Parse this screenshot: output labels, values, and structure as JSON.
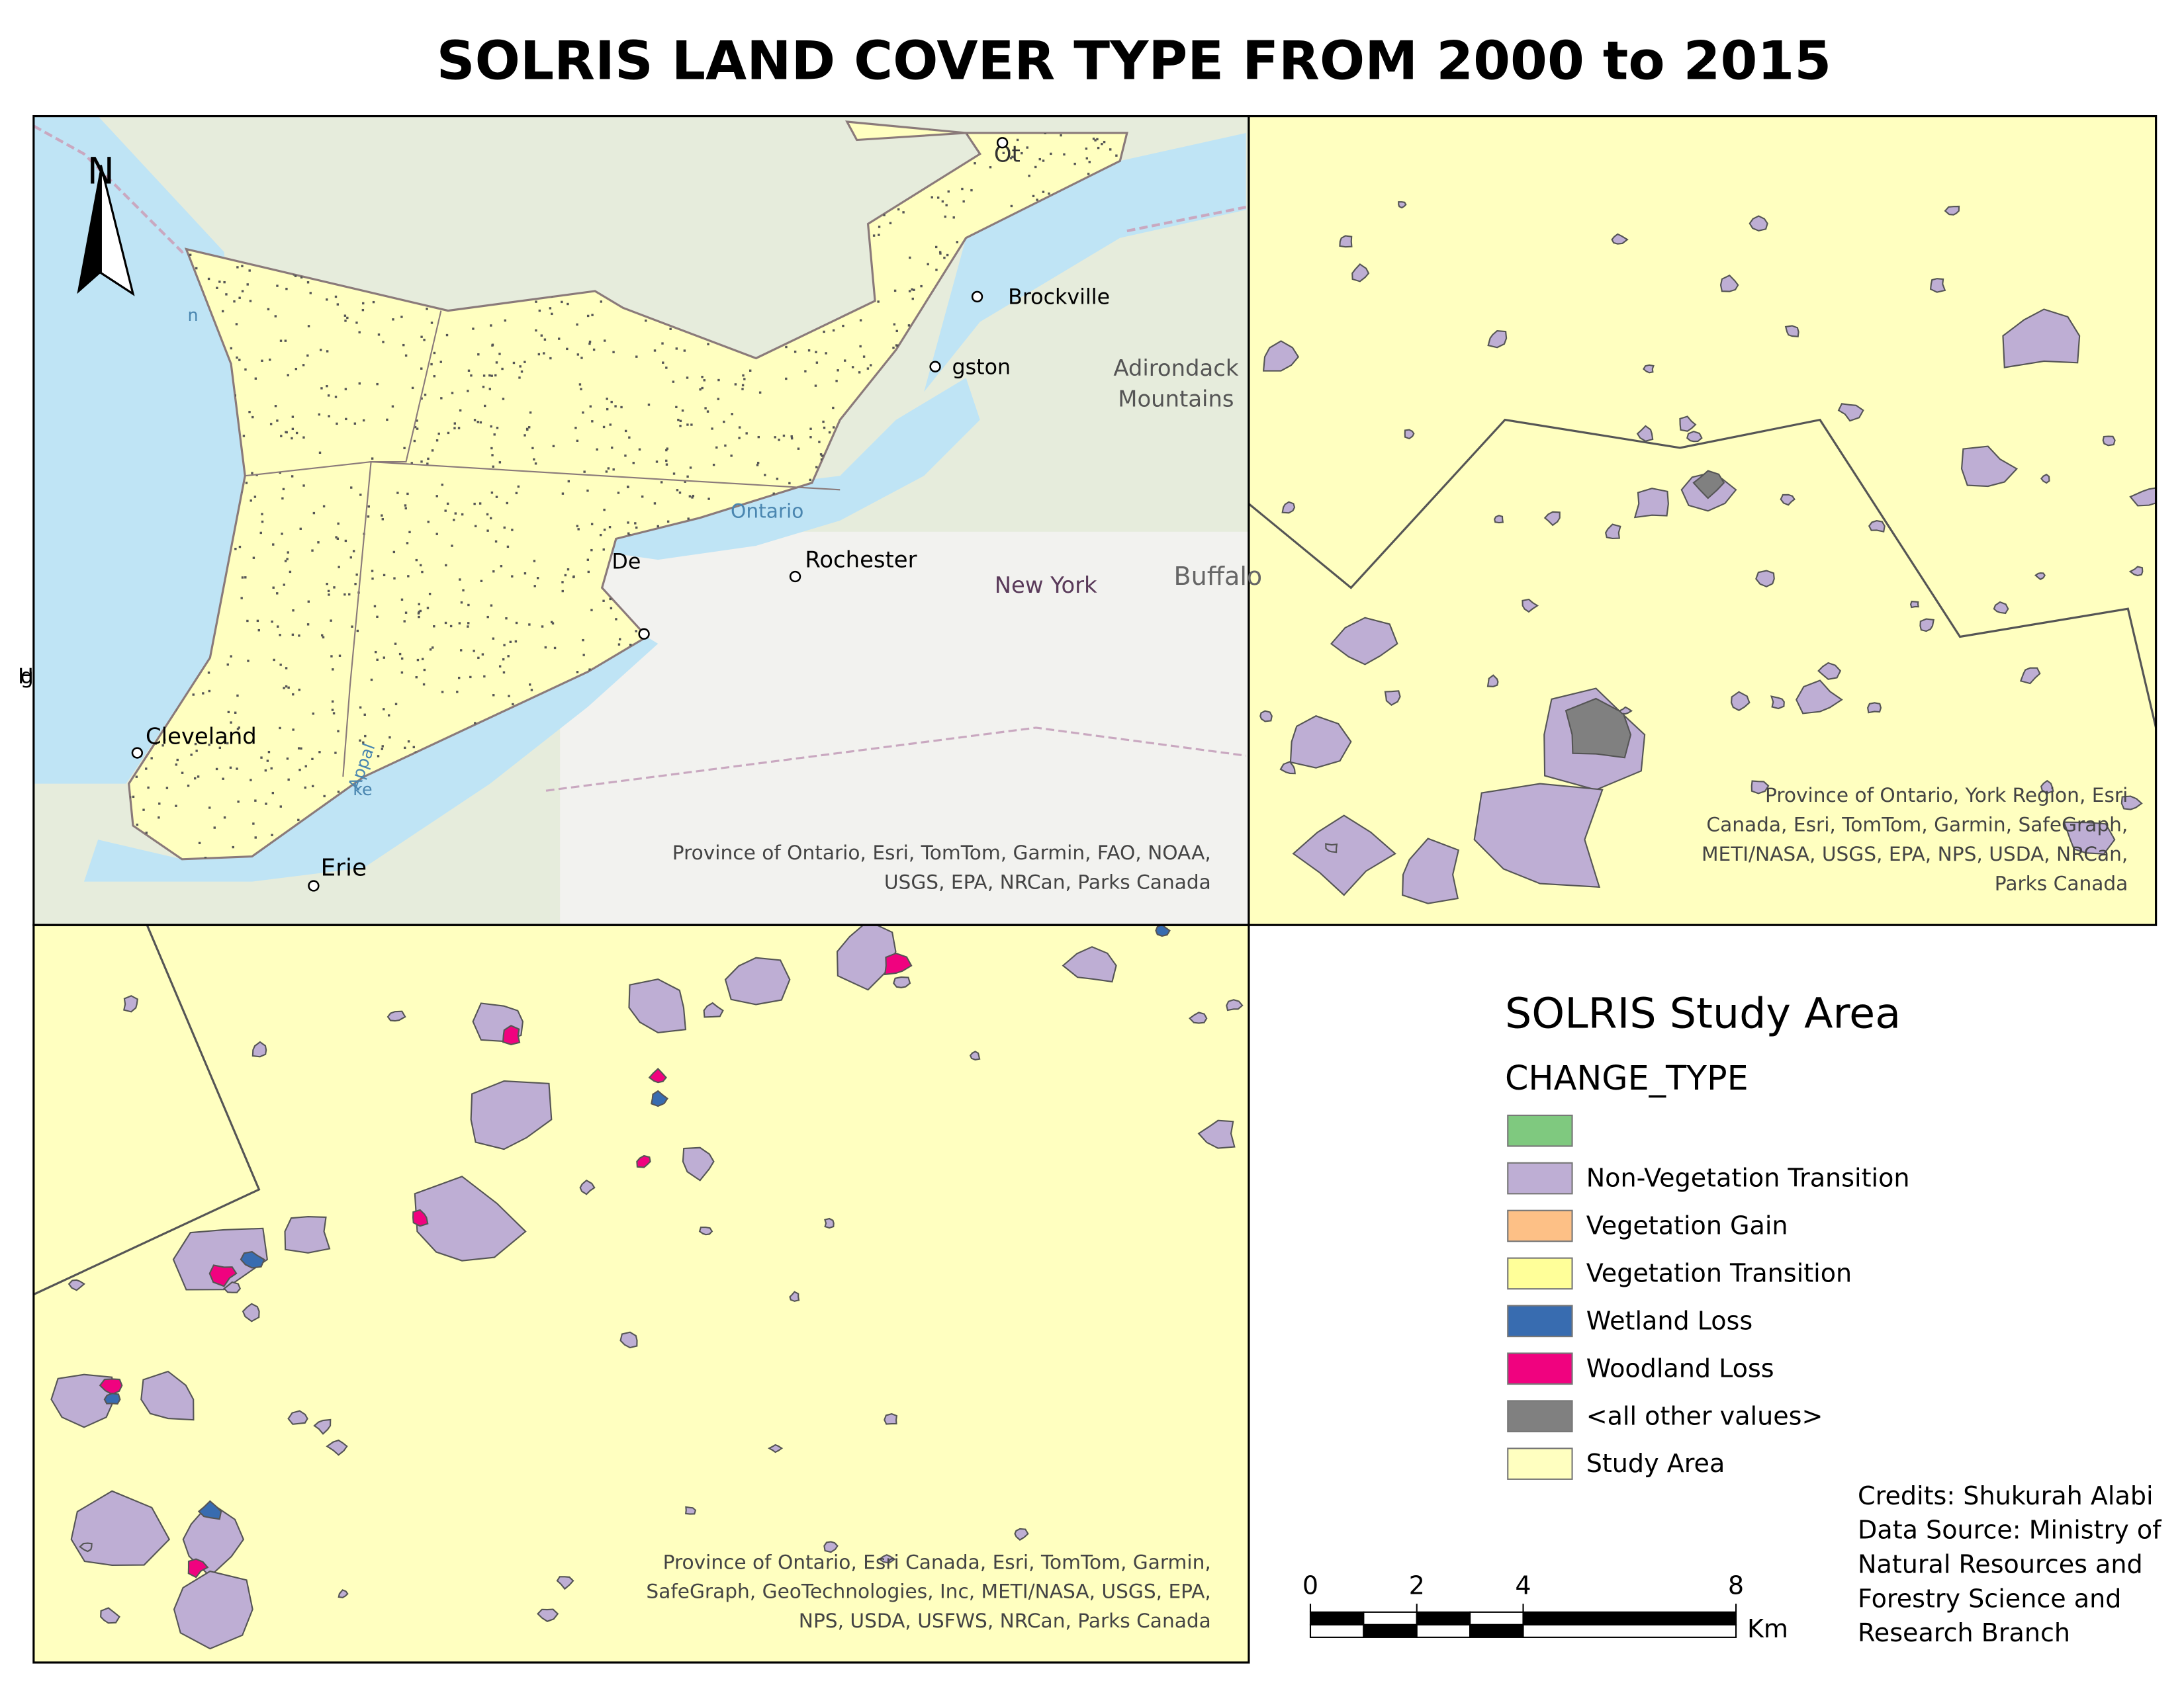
{
  "title": "SOLRIS LAND COVER TYPE FROM 2000 to 2015",
  "overview_map": {
    "north": "N",
    "places": [
      "Ot",
      "Brockville",
      "gston",
      "Adirondack",
      "Mountains",
      "Ontario",
      "Rochester",
      "New York",
      "Buffalo",
      "Appal",
      "ke",
      "Erie",
      "Cleveland",
      "De",
      "n",
      "H",
      "g"
    ],
    "attribution": [
      "Province of Ontario, Esri, TomTom, Garmin, FAO, NOAA,",
      "USGS, EPA, NRCan, Parks Canada"
    ]
  },
  "detail_map_1": {
    "attribution": [
      "Province of Ontario, York Region, Esri",
      "Canada, Esri, TomTom, Garmin, SafeGraph,",
      "METI/NASA, USGS, EPA, NPS, USDA, NRCan,",
      "Parks Canada"
    ]
  },
  "detail_map_2": {
    "attribution": [
      "Province of Ontario, Esri Canada, Esri, TomTom, Garmin,",
      "SafeGraph, GeoTechnologies, Inc, METI/NASA, USGS, EPA,",
      "NPS, USDA, USFWS, NRCan, Parks Canada"
    ]
  },
  "legend": {
    "title": "SOLRIS Study Area",
    "field": "CHANGE_TYPE",
    "items": [
      {
        "color": "#7fc97f"
      },
      {
        "label": "Non-Vegetation Transition",
        "color": "#beaed4"
      },
      {
        "label": "Vegetation Gain",
        "color": "#fdc086"
      },
      {
        "label": "Vegetation Transition",
        "color": "#ffff99"
      },
      {
        "label": "Wetland Loss",
        "color": "#386cb0"
      },
      {
        "label": "Woodland Loss",
        "color": "#f0027f"
      },
      {
        "label": "<all other values>",
        "color": "#808080"
      },
      {
        "label": "Study Area",
        "color": "#ffffc0"
      }
    ]
  },
  "scale_bar": {
    "ticks": [
      0,
      2,
      4,
      8
    ],
    "unit": "Km"
  },
  "credits": [
    "Credits: Shukurah Alabi",
    "Data Source: Ministry of",
    "Natural Resources and",
    "Forestry Science and",
    "Research Branch"
  ]
}
